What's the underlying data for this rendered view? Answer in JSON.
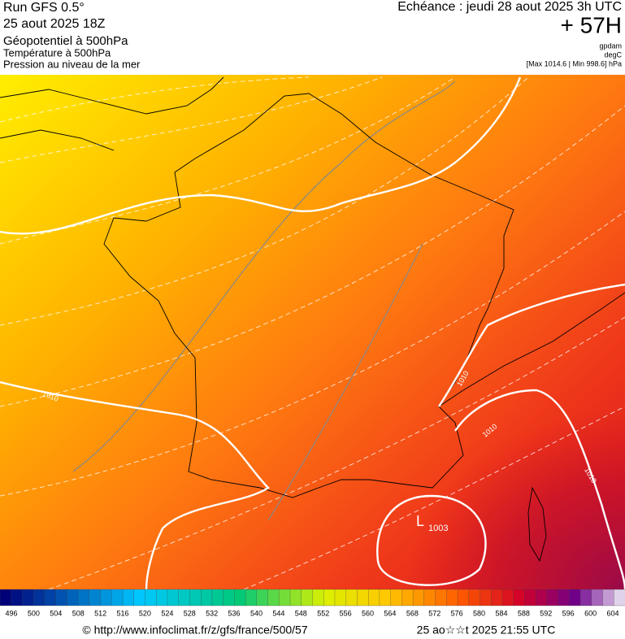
{
  "header": {
    "run": "Run GFS 0.5°",
    "date": "25 aout 2025 18Z",
    "title": "Géopotentiel à 500hPa",
    "subtitle1": "Température à 500hPa",
    "subtitle2": "Pression au niveau de la mer",
    "forecast": "Echéance : jeudi 28 aout 2025 3h UTC",
    "lead": "+ 57H",
    "units": [
      "gpdam",
      "degC",
      "[Max 1014.6 | Min 998.6] hPa"
    ]
  },
  "map": {
    "isobar_labels": [
      "1010",
      "1010",
      "1010",
      "1010"
    ],
    "low": {
      "symbol": "L",
      "value": "1003"
    }
  },
  "colorbar": {
    "ticks": [
      496,
      500,
      504,
      508,
      512,
      516,
      520,
      524,
      528,
      532,
      536,
      540,
      544,
      548,
      552,
      556,
      560,
      564,
      568,
      572,
      576,
      580,
      584,
      588,
      592,
      596,
      600,
      604
    ]
  },
  "footer": {
    "source": "© http://www.infoclimat.fr/z/gfs/france/500/57",
    "generated": "25 ao☆☆t 2025 21:55 UTC"
  }
}
